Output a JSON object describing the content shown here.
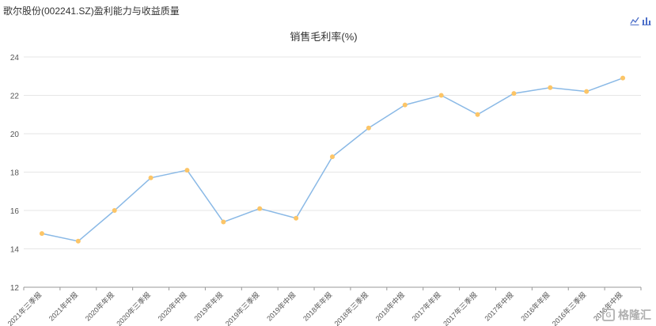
{
  "header": {
    "title": "歌尔股份(002241.SZ)盈利能力与收益质量"
  },
  "toolbar": {
    "line_icon": "line-chart-icon",
    "bar_icon": "bar-chart-icon",
    "accent": "#4d6fc9"
  },
  "watermark": {
    "text": "格隆汇",
    "logo_glyph": "G"
  },
  "chart_data": {
    "type": "line",
    "title": "销售毛利率(%)",
    "categories": [
      "2021年三季报",
      "2021年中报",
      "2020年年报",
      "2020年三季报",
      "2020年中报",
      "2019年年报",
      "2019年三季报",
      "2019年中报",
      "2018年年报",
      "2018年三季报",
      "2018年中报",
      "2017年年报",
      "2017年三季报",
      "2017年中报",
      "2016年年报",
      "2016年三季报",
      "2016年中报"
    ],
    "series": [
      {
        "values": [
          14.8,
          14.4,
          16.0,
          17.7,
          18.1,
          15.4,
          16.1,
          15.6,
          18.8,
          20.3,
          21.5,
          22.0,
          21.0,
          22.1,
          22.4,
          22.2,
          22.9
        ]
      }
    ],
    "ylim": [
      12,
      24
    ],
    "yticks": [
      12,
      14,
      16,
      18,
      20,
      22,
      24
    ],
    "grid": true,
    "line_color": "#8ab9e6",
    "marker_color": "#fcc567"
  }
}
